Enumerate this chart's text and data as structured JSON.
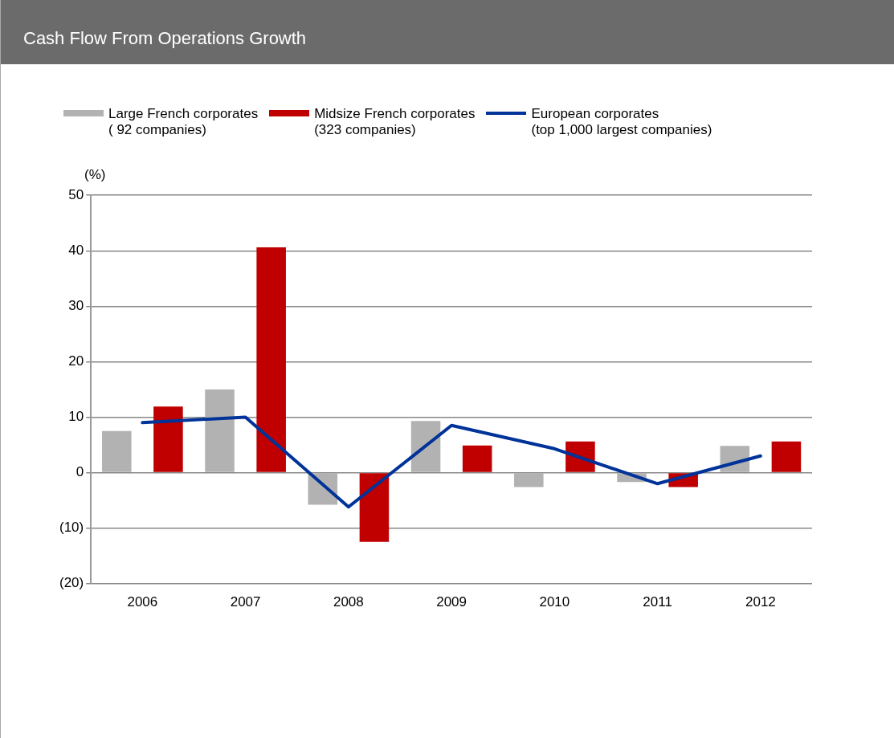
{
  "chart_data": {
    "type": "bar",
    "title": "Cash Flow From Operations Growth",
    "ylabel": "(%)",
    "categories": [
      "2006",
      "2007",
      "2008",
      "2009",
      "2010",
      "2011",
      "2012"
    ],
    "series": [
      {
        "name": "Large French corporates\n( 92 companies)",
        "color": "#b2b2b2",
        "values": [
          7.5,
          15,
          -5.8,
          9.3,
          -2.6,
          -1.7,
          4.8
        ]
      },
      {
        "name": "Midsize French corporates\n(323 companies)",
        "color": "#c00000",
        "values": [
          11.9,
          40.6,
          -12.5,
          4.9,
          5.6,
          -2.6,
          5.6
        ]
      },
      {
        "name": "European corporates\n(top 1,000 largest companies)",
        "type": "line",
        "color": "#003399",
        "values": [
          9.0,
          10.0,
          -6.2,
          8.5,
          4.3,
          -2.0,
          3.0
        ]
      }
    ],
    "ylim": [
      -20,
      50
    ],
    "yticks": [
      {
        "value": -20,
        "label": "(20)"
      },
      {
        "value": -10,
        "label": "(10)"
      },
      0,
      10,
      20,
      30,
      40,
      50
    ],
    "grid": "y",
    "legend": "top"
  }
}
